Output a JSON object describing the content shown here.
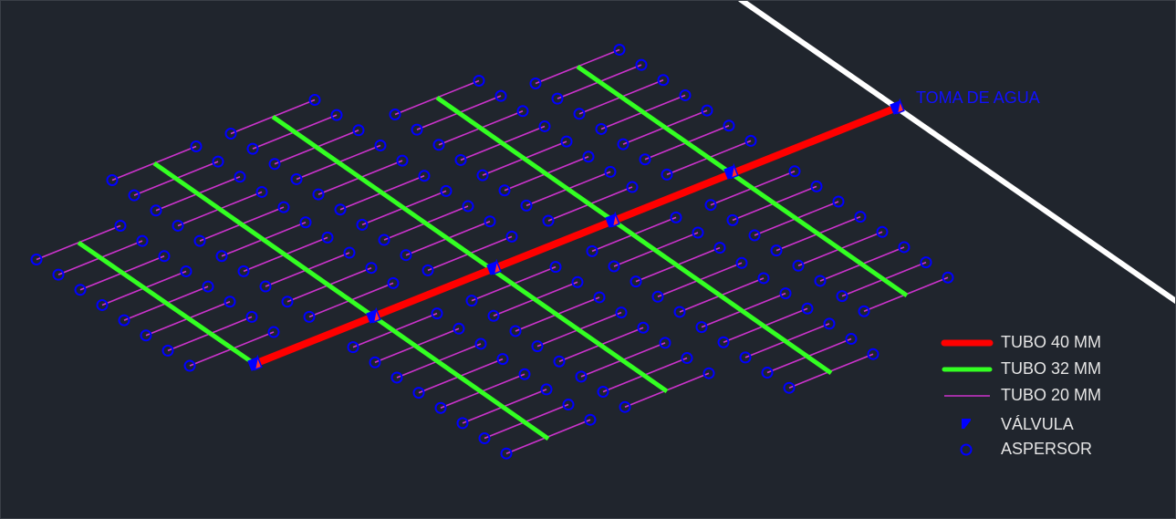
{
  "colors": {
    "background": "#20252d",
    "tubo_40": "#ff0000",
    "tubo_32": "#33ff22",
    "tubo_20": "#cc33cc",
    "valvula": "#0000ff",
    "aspersor": "#0000ff",
    "boundary": "#ffffff"
  },
  "annotation": {
    "toma": "TOMA DE AGUA"
  },
  "legend": [
    {
      "label": "TUBO 40 MM",
      "symbol": "thick-red-line"
    },
    {
      "label": "TUBO 32 MM",
      "symbol": "green-line"
    },
    {
      "label": "TUBO 20 MM",
      "symbol": "thin-magenta-line"
    },
    {
      "label": "VÁLVULA",
      "symbol": "valve-icon"
    },
    {
      "label": "ASPERSOR",
      "symbol": "sprinkler-circle-icon"
    }
  ]
}
